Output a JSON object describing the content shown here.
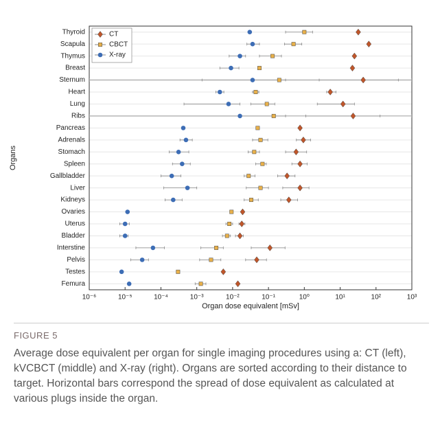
{
  "chart_data": {
    "type": "errorbar-scatter",
    "log_x": true,
    "grid": true,
    "legend": "upper left",
    "xlabel": "Organ dose equivalent [mSv]",
    "ylabel": "Organs",
    "categories": [
      "Thyroid",
      "Scapula",
      "Thymus",
      "Breast",
      "Sternum",
      "Heart",
      "Lung",
      "Ribs",
      "Pancreas",
      "Adrenals",
      "Stomach",
      "Spleen",
      "Gallbladder",
      "Liver",
      "Kidneys",
      "Ovaries",
      "Uterus",
      "Bladder",
      "Interstine",
      "Pelvis",
      "Testes",
      "Femura"
    ],
    "xlim": [
      1e-06,
      1000
    ],
    "xticks": [
      {
        "value": 1e-06,
        "label": "10⁻⁶"
      },
      {
        "value": 1e-05,
        "label": "10⁻⁵"
      },
      {
        "value": 0.0001,
        "label": "10⁻⁴"
      },
      {
        "value": 0.001,
        "label": "10⁻³"
      },
      {
        "value": 0.01,
        "label": "10⁻²"
      },
      {
        "value": 0.1,
        "label": "10⁻¹"
      },
      {
        "value": 1,
        "label": "10⁰"
      },
      {
        "value": 10,
        "label": "10¹"
      },
      {
        "value": 100,
        "label": "10²"
      },
      {
        "value": 1000,
        "label": "10³"
      }
    ],
    "series": [
      {
        "name": "CT",
        "color": "#c0562a",
        "marker": "diamond",
        "values": [
          32,
          63,
          25,
          22,
          44,
          5.3,
          12,
          23,
          0.76,
          0.94,
          0.59,
          0.76,
          0.33,
          0.76,
          0.37,
          0.019,
          0.018,
          0.016,
          0.11,
          0.047,
          0.0055,
          0.014
        ],
        "xerr_low": [
          null,
          null,
          null,
          null,
          2.6,
          4.2,
          2.3,
          1.1,
          null,
          0.6,
          0.3,
          0.45,
          0.18,
          0.25,
          0.22,
          null,
          0.015,
          0.012,
          0.033,
          0.023,
          null,
          null
        ],
        "xerr_high": [
          null,
          null,
          null,
          null,
          420,
          7.6,
          25,
          130,
          null,
          1.5,
          1.16,
          1.2,
          0.55,
          1.35,
          0.65,
          null,
          0.022,
          0.02,
          0.29,
          0.088,
          null,
          null
        ]
      },
      {
        "name": "CBCT",
        "color": "#e8b04a",
        "marker": "square",
        "values": [
          1.0,
          0.5,
          0.13,
          0.056,
          0.2,
          0.044,
          0.09,
          0.14,
          0.05,
          0.06,
          0.04,
          0.068,
          0.028,
          0.06,
          0.033,
          0.0093,
          0.0081,
          0.007,
          0.0035,
          0.0025,
          0.0003,
          0.0013
        ],
        "xerr_low": [
          0.3,
          0.28,
          0.056,
          null,
          1e-06,
          0.036,
          0.032,
          1e-06,
          null,
          0.036,
          0.027,
          0.044,
          0.021,
          0.024,
          0.021,
          null,
          0.0065,
          0.0052,
          0.0013,
          0.0012,
          null,
          0.0009
        ],
        "xerr_high": [
          1.7,
          0.85,
          0.23,
          null,
          1000,
          0.054,
          0.15,
          1000,
          null,
          0.096,
          0.056,
          0.087,
          0.042,
          0.1,
          0.052,
          null,
          0.01,
          0.0087,
          0.0055,
          0.0047,
          null,
          0.0018
        ]
      },
      {
        "name": "X-ray",
        "color": "#3d6db5",
        "marker": "circle",
        "values": [
          0.03,
          0.036,
          0.016,
          0.009,
          0.036,
          0.0044,
          0.0077,
          0.016,
          0.00042,
          0.0005,
          0.00031,
          0.00039,
          0.0002,
          0.00055,
          0.00022,
          1.17e-05,
          1e-05,
          1e-05,
          6e-05,
          3e-05,
          8e-06,
          1.3e-05
        ],
        "xerr_low": [
          null,
          0.025,
          0.008,
          0.0044,
          0.0014,
          0.0034,
          0.00044,
          1e-06,
          null,
          0.00034,
          0.00017,
          0.00021,
          0.0001,
          0.00012,
          0.00013,
          null,
          7.1e-06,
          7.1e-06,
          2e-05,
          1.43e-05,
          null,
          null
        ],
        "xerr_high": [
          null,
          0.056,
          0.023,
          0.015,
          0.3,
          0.0057,
          0.016,
          0.3,
          null,
          0.00075,
          0.0006,
          0.00066,
          0.00036,
          0.001,
          0.00039,
          null,
          1.31e-05,
          1.22e-05,
          0.000125,
          4.5e-05,
          null,
          null
        ]
      }
    ]
  },
  "caption": {
    "label": "FIGURE 5",
    "text": "Average dose equivalent per organ for single imaging procedures using a: CT (left), kVCBCT (middle) and X-ray (right). Organs are sorted according to their distance to target. Horizontal bars correspond the spread of dose equivalent as calculated at various plugs inside the organ."
  }
}
